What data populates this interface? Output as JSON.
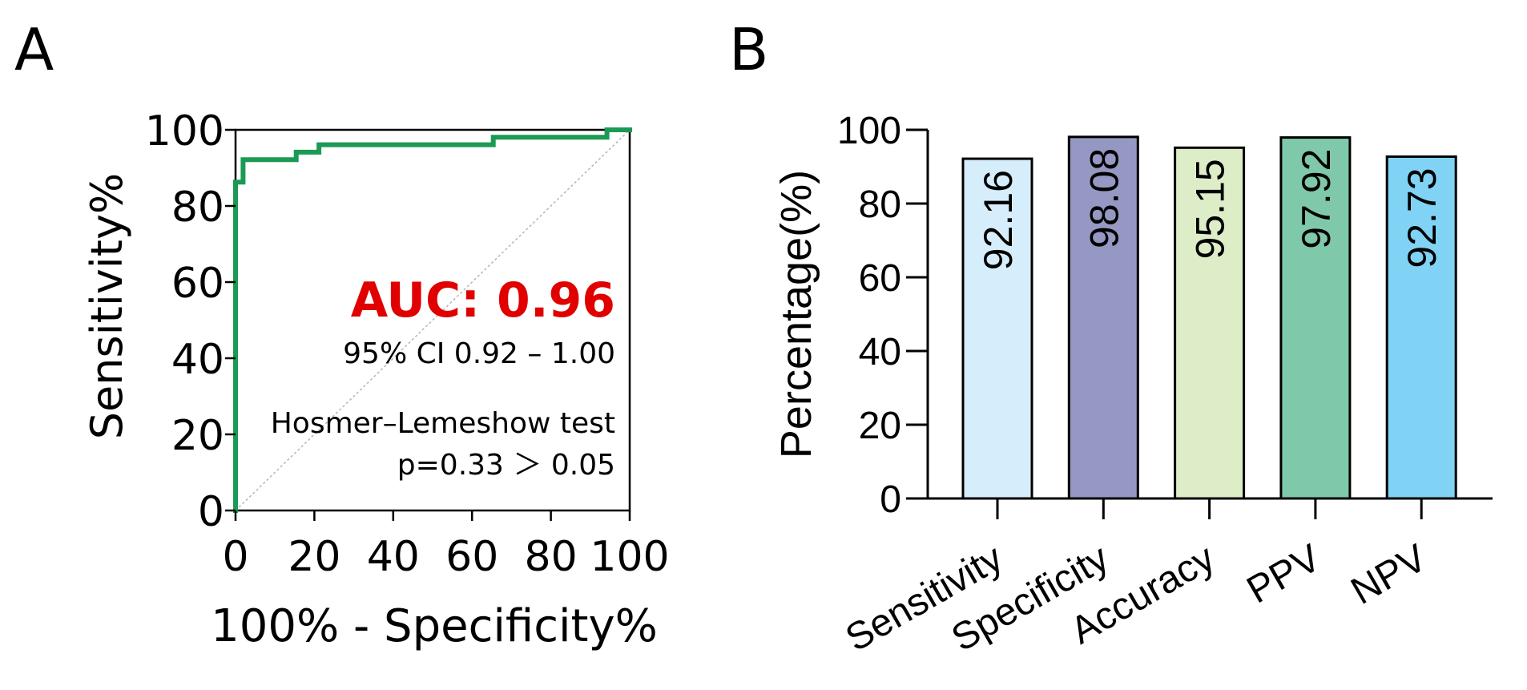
{
  "panels": {
    "a_label": "A",
    "b_label": "B"
  },
  "chart_data": [
    {
      "type": "line",
      "panel": "A",
      "title": "",
      "xlabel": "100% - Specificity%",
      "ylabel": "Sensitivity%",
      "xlim": [
        0,
        100
      ],
      "ylim": [
        0,
        100
      ],
      "xticks": [
        "0",
        "20",
        "40",
        "60",
        "80",
        "100"
      ],
      "yticks": [
        "0",
        "20",
        "40",
        "60",
        "80",
        "100"
      ],
      "grid": false,
      "series": [
        {
          "name": "ROC curve",
          "color": "#1b9a55",
          "step": true,
          "x": [
            0,
            0,
            1.92,
            1.92,
            15.38,
            15.38,
            21.15,
            21.15,
            65.38,
            65.38,
            94.23,
            94.23,
            100
          ],
          "y": [
            0,
            86.27,
            86.27,
            92.16,
            92.16,
            94.12,
            94.12,
            96.08,
            96.08,
            98.04,
            98.04,
            100,
            100
          ]
        },
        {
          "name": "Reference line",
          "color": "#b8b8b8",
          "style": "dotted",
          "x": [
            0,
            100
          ],
          "y": [
            0,
            100
          ]
        }
      ],
      "annotations": {
        "auc": "AUC: 0.96",
        "auc_color": "#e00000",
        "ci": "95% CI 0.92 – 1.00",
        "hl_test": "Hosmer–Lemeshow test",
        "hl_p": "p=0.33 ＞ 0.05"
      }
    },
    {
      "type": "bar",
      "panel": "B",
      "title": "",
      "xlabel": "",
      "ylabel": "Percentage(%)",
      "ylim": [
        0,
        100
      ],
      "yticks": [
        "0",
        "20",
        "40",
        "60",
        "80",
        "100"
      ],
      "grid": false,
      "categories": [
        "Sensitivity",
        "Specificity",
        "Accuracy",
        "PPV",
        "NPV"
      ],
      "values": [
        92.16,
        98.08,
        95.15,
        97.92,
        92.73
      ],
      "value_labels": [
        "92.16",
        "98.08",
        "95.15",
        "97.92",
        "92.73"
      ],
      "colors": [
        "#d6eefb",
        "#9598c2",
        "#ddedc7",
        "#80c8aa",
        "#80d3f5"
      ]
    }
  ]
}
